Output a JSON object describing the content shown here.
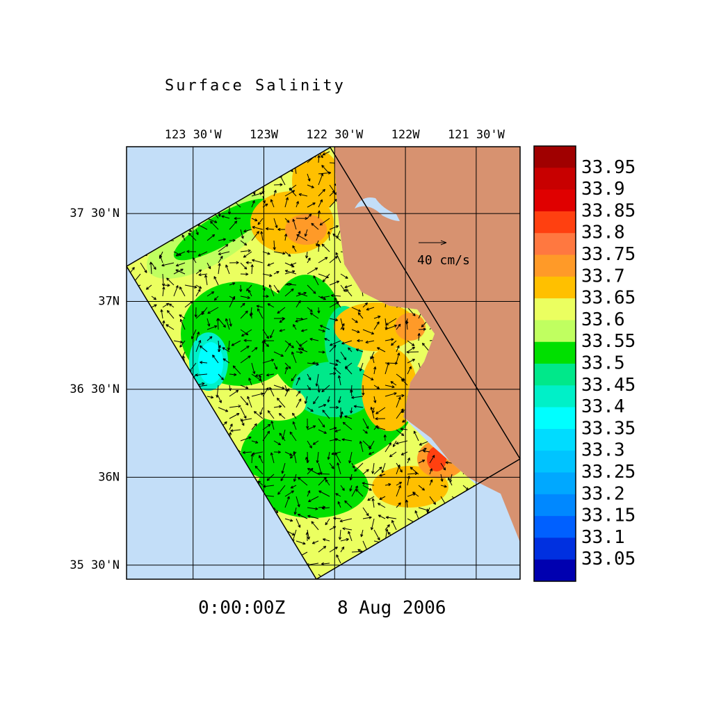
{
  "title": "Surface Salinity",
  "map": {
    "xlim": [
      -123.97,
      -121.19
    ],
    "ylim": [
      35.42,
      37.88
    ],
    "lon_ticks": [
      {
        "value": -123.5,
        "label": "123 30'W"
      },
      {
        "value": -123,
        "label": "123W"
      },
      {
        "value": -122.5,
        "label": "122 30'W"
      },
      {
        "value": -122,
        "label": "122W"
      },
      {
        "value": -121.5,
        "label": "121 30'W"
      }
    ],
    "lat_ticks": [
      {
        "value": 37.5,
        "label": "37 30'N"
      },
      {
        "value": 37,
        "label": "37N"
      },
      {
        "value": 36.5,
        "label": "36 30'N"
      },
      {
        "value": 36,
        "label": "36N"
      },
      {
        "value": 35.5,
        "label": "35 30'N"
      }
    ],
    "vector_scale_label": "40 cm/s"
  },
  "colorbar": {
    "lim": [
      33.0,
      34.0
    ],
    "levels": [
      33.95,
      33.9,
      33.85,
      33.8,
      33.75,
      33.7,
      33.65,
      33.6,
      33.55,
      33.5,
      33.45,
      33.4,
      33.35,
      33.3,
      33.25,
      33.2,
      33.15,
      33.1,
      33.05
    ],
    "colors": [
      "#a00000",
      "#c80000",
      "#e00000",
      "#ff4010",
      "#ff7840",
      "#ff9a28",
      "#ffc000",
      "#ebff60",
      "#c0ff60",
      "#00e000",
      "#00e88a",
      "#00f0c8",
      "#00ffff",
      "#00dcff",
      "#00c4ff",
      "#00a8ff",
      "#0088ff",
      "#0060ff",
      "#0030e0",
      "#0000b0"
    ]
  },
  "time": "0:00:00Z",
  "date": "8 Aug 2006"
}
